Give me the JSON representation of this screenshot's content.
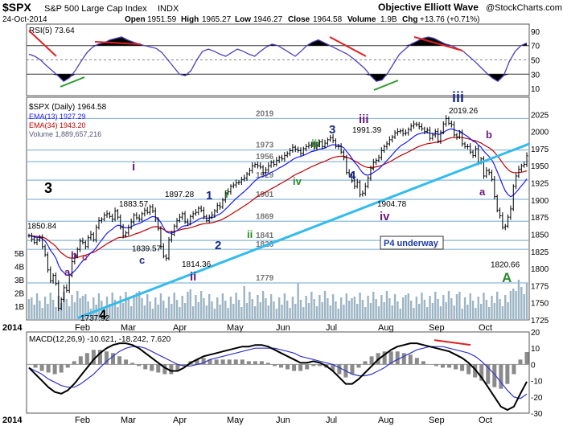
{
  "header": {
    "symbol": "$SPX",
    "name": "S&P 500 Large Cap Index",
    "exchange": "INDX",
    "date": "24-Oct-2014",
    "open_label": "Open",
    "open": "1951.59",
    "high_label": "High",
    "high": "1965.27",
    "low_label": "Low",
    "low": "1946.27",
    "close_label": "Close",
    "close": "1964.58",
    "volume_label": "Volume",
    "volume": "1.9B",
    "chg_label": "Chg",
    "chg": "+13.76 (+0.71%)",
    "watermark": "Objective Elliott Wave",
    "copyright": "@StockCharts.com"
  },
  "colors": {
    "price_bars": "#000000",
    "ema13": "#1a1aff",
    "ema34": "#c00000",
    "volume": "#9cb4c4",
    "trendline": "#33bbee",
    "fib_lines": "#8ab8d8",
    "rsi_line": "#4b3fb8",
    "macd_line": "#000000",
    "signal_line": "#3333cc",
    "histogram": "#8a8a8a",
    "wave_purple": "#6a1a7a",
    "wave_blue": "#1a2a8a",
    "wave_green": "#2a8a2a",
    "red_divergence": "#e02020",
    "green_divergence": "#2a9a2a"
  },
  "chart_data": [
    {
      "type": "line",
      "panel": "RSI",
      "legend": "RSI(5) 73.64",
      "ylim": [
        0,
        100
      ],
      "y_ticks": [
        10,
        30,
        50,
        70,
        90
      ],
      "guides": [
        30,
        70
      ],
      "series": [
        {
          "name": "RSI(5)",
          "values": [
            58,
            55,
            50,
            42,
            35,
            28,
            20,
            25,
            35,
            48,
            60,
            68,
            72,
            74,
            78,
            80,
            82,
            78,
            75,
            72,
            70,
            68,
            66,
            60,
            50,
            40,
            30,
            28,
            35,
            50,
            62,
            65,
            62,
            58,
            55,
            60,
            65,
            62,
            58,
            55,
            62,
            68,
            72,
            70,
            65,
            60,
            55,
            62,
            70,
            75,
            78,
            74,
            70,
            66,
            62,
            58,
            52,
            45,
            38,
            28,
            20,
            22,
            32,
            45,
            58,
            65,
            72,
            76,
            80,
            82,
            80,
            76,
            72,
            70,
            66,
            62,
            55,
            48,
            40,
            32,
            25,
            20,
            28,
            48,
            62,
            70,
            73.64
          ]
        }
      ]
    },
    {
      "type": "line",
      "panel": "Price (Daily)",
      "legend": [
        "$SPX (Daily) 1964.58",
        "EMA(13) 1927.29",
        "EMA(34) 1943.20",
        "Volume 1,889,657,216"
      ],
      "ylim": [
        1725,
        2050
      ],
      "y_ticks": [
        1725,
        1750,
        1775,
        1800,
        1825,
        1850,
        1875,
        1900,
        1925,
        1950,
        1975,
        2000,
        2025
      ],
      "vol_ticks": [
        "1B",
        "2B",
        "3B",
        "4B",
        "5B"
      ],
      "x_ticks": [
        "Feb",
        "Mar",
        "Apr",
        "May",
        "Jun",
        "Jul",
        "Aug",
        "Sep",
        "Oct"
      ],
      "x_year": "2014",
      "levels": [
        1779,
        1828,
        1841,
        1869,
        1901,
        1929,
        1956,
        1973,
        2019
      ],
      "close": [
        1848,
        1843,
        1838,
        1842,
        1845,
        1832,
        1820,
        1798,
        1782,
        1790,
        1778,
        1742,
        1755,
        1772,
        1768,
        1790,
        1810,
        1818,
        1828,
        1840,
        1838,
        1832,
        1845,
        1850,
        1842,
        1860,
        1870,
        1872,
        1878,
        1880,
        1876,
        1872,
        1884,
        1875,
        1860,
        1848,
        1852,
        1860,
        1868,
        1878,
        1874,
        1872,
        1880,
        1885,
        1882,
        1890,
        1884,
        1872,
        1858,
        1832,
        1818,
        1815,
        1842,
        1850,
        1862,
        1870,
        1875,
        1880,
        1868,
        1866,
        1876,
        1880,
        1882,
        1888,
        1885,
        1876,
        1870,
        1875,
        1878,
        1884,
        1892,
        1890,
        1900,
        1910,
        1912,
        1920,
        1922,
        1925,
        1926,
        1930,
        1932,
        1938,
        1943,
        1950,
        1952,
        1950,
        1948,
        1940,
        1944,
        1950,
        1955,
        1952,
        1958,
        1962,
        1960,
        1965,
        1968,
        1972,
        1977,
        1974,
        1972,
        1968,
        1975,
        1978,
        1980,
        1982,
        1976,
        1980,
        1985,
        1978,
        1983,
        1988,
        1991,
        1987,
        1978,
        1978,
        1970,
        1962,
        1940,
        1938,
        1928,
        1920,
        1926,
        1908,
        1910,
        1920,
        1932,
        1946,
        1955,
        1958,
        1962,
        1972,
        1978,
        1982,
        1988,
        1992,
        1998,
        2000,
        2001,
        1997,
        1998,
        2003,
        2008,
        2011,
        2010,
        2007,
        2004,
        2000,
        2002,
        1990,
        1995,
        2000,
        1986,
        1999,
        2011,
        2019,
        2012,
        2010,
        1995,
        1992,
        1998,
        1982,
        1978,
        1978,
        1970,
        1965,
        1975,
        1955,
        1960,
        1935,
        1943,
        1940,
        1930,
        1905,
        1885,
        1877,
        1860,
        1862,
        1875,
        1887,
        1920,
        1935,
        1945,
        1950,
        1952,
        1964.58
      ],
      "highs": [
        {
          "label": "1850.84",
          "value": 1850.84
        },
        {
          "label": "1883.57",
          "value": 1883.57
        },
        {
          "label": "1897.28",
          "value": 1897.28
        },
        {
          "label": "1991.39",
          "value": 1991.39
        },
        {
          "label": "2019.26",
          "value": 2019.26
        }
      ],
      "lows": [
        {
          "label": "1737.92",
          "value": 1737.92
        },
        {
          "label": "1839.57",
          "value": 1839.57
        },
        {
          "label": "1814.36",
          "value": 1814.36
        },
        {
          "label": "1904.78",
          "value": 1904.78
        },
        {
          "label": "1820.66",
          "value": 1820.66
        }
      ],
      "wave_labels": [
        "3",
        "4",
        "i",
        "ii",
        "a",
        "b",
        "c",
        "1",
        "2",
        "3",
        "4",
        "iii",
        "iv",
        "A"
      ],
      "annotation": "P4 underway"
    },
    {
      "type": "line",
      "panel": "MACD",
      "legend": "MACD(12,26,9) -10.621, -18.242, 7.620",
      "ylim": [
        -30,
        20
      ],
      "y_ticks": [
        -30,
        -20,
        -10,
        0,
        10,
        20
      ],
      "series": [
        {
          "name": "MACD",
          "values": [
            -2,
            -6,
            -10,
            -14,
            -17,
            -18,
            -16,
            -12,
            -7,
            -2,
            3,
            7,
            10,
            12,
            13,
            13,
            12,
            10,
            7,
            4,
            1,
            -2,
            -4,
            -4,
            -2,
            1,
            3,
            5,
            6,
            7,
            8,
            9,
            10,
            11,
            11,
            12,
            12,
            11,
            9,
            7,
            5,
            3,
            1,
            1,
            2,
            1,
            -1,
            -4,
            -8,
            -12,
            -12,
            -9,
            -5,
            -1,
            3,
            6,
            9,
            11,
            12,
            13,
            13,
            12,
            11,
            10,
            9,
            8,
            6,
            4,
            1,
            -3,
            -8,
            -14,
            -20,
            -26,
            -28,
            -26,
            -18,
            -10.621
          ]
        },
        {
          "name": "Signal",
          "values": [
            -2,
            -4,
            -6,
            -9,
            -11,
            -13,
            -14,
            -14,
            -12,
            -9,
            -6,
            -2,
            2,
            5,
            8,
            10,
            11,
            11,
            10,
            8,
            6,
            4,
            2,
            0,
            -1,
            -1,
            0,
            1,
            3,
            4,
            5,
            6,
            7,
            8,
            9,
            10,
            10,
            10,
            10,
            9,
            8,
            7,
            5,
            4,
            3,
            2,
            1,
            0,
            -2,
            -4,
            -6,
            -7,
            -7,
            -6,
            -4,
            -2,
            1,
            3,
            5,
            7,
            9,
            10,
            11,
            11,
            11,
            10,
            9,
            8,
            7,
            5,
            2,
            -2,
            -6,
            -11,
            -16,
            -20,
            -21,
            -18.242
          ]
        }
      ],
      "histogram": [
        0,
        -2,
        -4,
        -5,
        -6,
        -5,
        -2,
        2,
        5,
        7,
        9,
        9,
        8,
        7,
        5,
        3,
        1,
        -1,
        -3,
        -4,
        -5,
        -6,
        -6,
        -4,
        -1,
        2,
        3,
        4,
        3,
        3,
        3,
        3,
        3,
        3,
        2,
        2,
        2,
        1,
        -1,
        -2,
        -3,
        -4,
        -4,
        -3,
        -1,
        -1,
        -2,
        -4,
        -6,
        -8,
        -6,
        -2,
        2,
        5,
        7,
        8,
        8,
        8,
        7,
        6,
        4,
        2,
        0,
        -1,
        -2,
        -2,
        -3,
        -4,
        -6,
        -8,
        -10,
        -12,
        -14,
        -15,
        -12,
        -6,
        3,
        7.62
      ]
    }
  ]
}
